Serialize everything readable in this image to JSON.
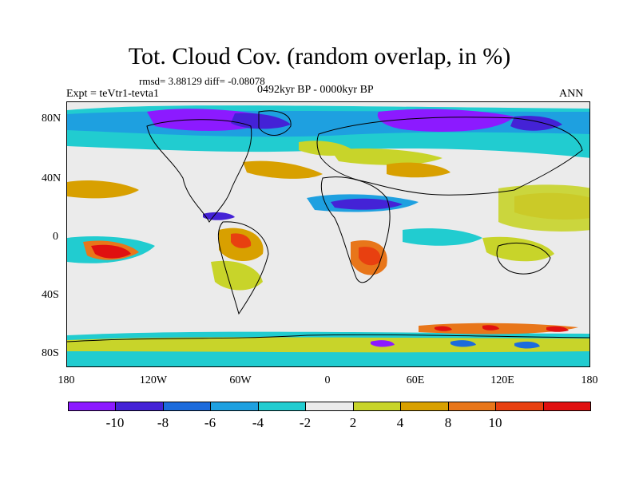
{
  "title": "Tot. Cloud Cov. (random overlap, in %)",
  "stats": "rmsd= 3.88129 diff= -0.08078",
  "experiment": "Expt = teVtr1-tevta1",
  "period": "0492kyr BP - 0000kyr BP",
  "season": "ANN",
  "lat_labels": [
    "80N",
    "40N",
    "0",
    "40S",
    "80S"
  ],
  "lon_labels": [
    "180",
    "120W",
    "60W",
    "0",
    "60E",
    "120E",
    "180"
  ],
  "colorbar": {
    "colors": [
      "#8c1aff",
      "#4422d6",
      "#1c6bdc",
      "#1ea0e0",
      "#21ccd0",
      "#ebebeb",
      "#c8d42a",
      "#d8a000",
      "#e8761a",
      "#e84010",
      "#e01010"
    ],
    "labels": [
      "-10",
      "-8",
      "-6",
      "-4",
      "-2",
      "2",
      "4",
      "8",
      "10"
    ]
  }
}
